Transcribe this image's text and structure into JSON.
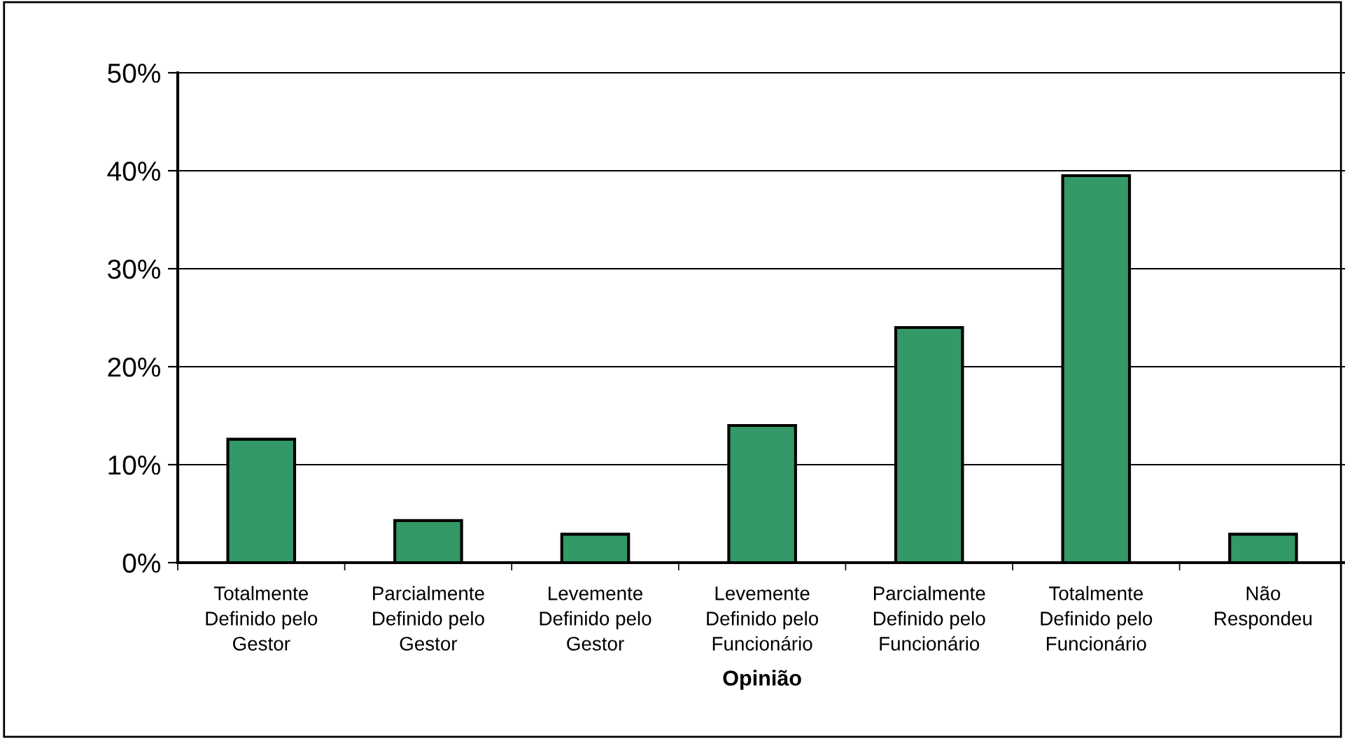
{
  "chart_data": {
    "type": "bar",
    "xlabel": "Opinião",
    "categories": [
      "Totalmente\nDefinido pelo\nGestor",
      "Parcialmente\nDefinido pelo\nGestor",
      "Levemente\nDefinido pelo\nGestor",
      "Levemente\nDefinido pelo\nFuncionário",
      "Parcialmente\nDefinido pelo\nFuncionário",
      "Totalmente\nDefinido pelo\nFuncionário",
      "Não\nRespondeu"
    ],
    "values": [
      12.6,
      4.3,
      2.9,
      14.0,
      24.0,
      39.5,
      2.9
    ],
    "color": "#339966",
    "ylim": [
      0,
      50
    ],
    "yticks": [
      {
        "value": 0,
        "label": "0%"
      },
      {
        "value": 10,
        "label": "10%"
      },
      {
        "value": 20,
        "label": "20%"
      },
      {
        "value": 30,
        "label": "30%"
      },
      {
        "value": 40,
        "label": "40%"
      },
      {
        "value": 50,
        "label": "50%"
      }
    ],
    "grid": "y"
  }
}
